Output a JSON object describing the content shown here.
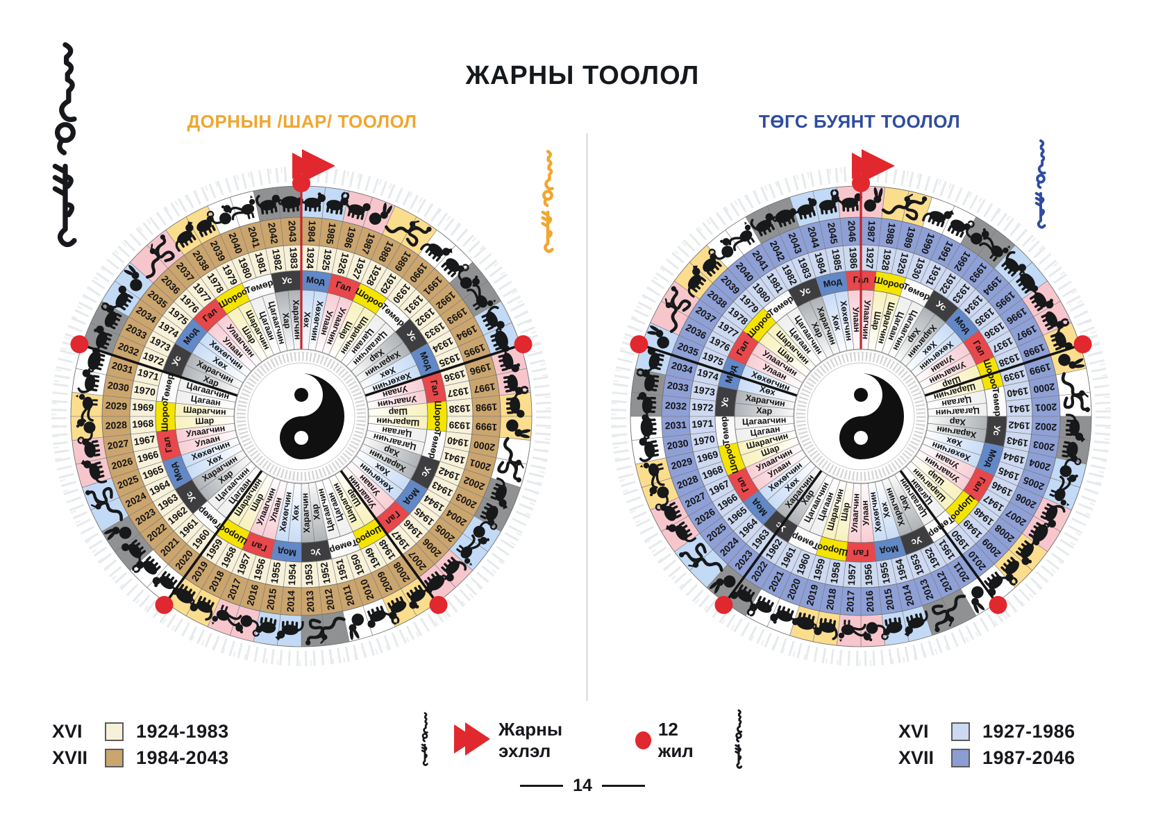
{
  "page": {
    "title": "ЖАРНЫ ТООЛОЛ",
    "page_number": "14"
  },
  "panels": {
    "left": {
      "subtitle": "ДОРНЫН /ШАР/ ТООЛОЛ",
      "accent": "#F0A62F",
      "legend": [
        {
          "roman": "XVI",
          "range": "1924-1983",
          "swatch": "#F8F1DA"
        },
        {
          "roman": "XVII",
          "range": "1984-2043",
          "swatch": "#CBA56E"
        }
      ]
    },
    "right": {
      "subtitle": "ТӨГС БУЯНТ ТООЛОЛ",
      "accent": "#2E4C9F",
      "legend": [
        {
          "roman": "XVI",
          "range": "1927-1986",
          "swatch": "#CDD9F1"
        },
        {
          "roman": "XVII",
          "range": "1987-2046",
          "swatch": "#8B9DD3"
        }
      ]
    }
  },
  "center_legend": {
    "flag_label": "Жарны эхлэл",
    "dot_label": "12 жил",
    "marker_color": "#E0282E"
  },
  "wheels": [
    {
      "id": "left",
      "outer": {
        "cycle": "XVII",
        "start": 1984,
        "end": 2043,
        "color": "#CBA56E"
      },
      "inner": {
        "cycle": "XVI",
        "start": 1924,
        "end": 1983,
        "color": "#F8F1DA"
      },
      "flag_at": 1984,
      "dot_every_years": 12
    },
    {
      "id": "right",
      "outer": {
        "cycle": "XVII",
        "start": 1987,
        "end": 2046,
        "color": "#8FA0D6"
      },
      "inner": {
        "cycle": "XVI",
        "start": 1927,
        "end": 1986,
        "color": "#CDD9F1"
      },
      "flag_at": 1987,
      "dot_every_years": 12
    }
  ],
  "cycle": {
    "elements": [
      {
        "name": "Мод",
        "band": "#6288C8",
        "band_text": "#141414",
        "animal_bg": "#C2DAF5",
        "fade": "#C8DCF6"
      },
      {
        "name": "Гал",
        "band": "#E8474B",
        "band_text": "#141414",
        "animal_bg": "#F7C6CD",
        "fade": "#F8CDD4"
      },
      {
        "name": "Шороо",
        "band": "#F5E400",
        "band_text": "#141414",
        "animal_bg": "#FBDD8E",
        "fade": "#F8F1BC"
      },
      {
        "name": "Төмөр",
        "band": "#FAFAFA",
        "band_text": "#141414",
        "animal_bg": "#FFFFFF",
        "fade": "#EFEFEF"
      },
      {
        "name": "Ус",
        "band": "#3E3E40",
        "band_text": "#FFFFFF",
        "animal_bg": "#909193",
        "fade": "#AEB2B6"
      }
    ],
    "color_names": [
      "Хөх",
      "Хөхөгчин",
      "Улаан",
      "Улаагчин",
      "Шар",
      "Шарагчин",
      "Цагаан",
      "Цагаагчин",
      "Хар",
      "Харагчин"
    ],
    "animals": [
      "rat",
      "ox",
      "tiger",
      "rabbit",
      "dragon",
      "snake",
      "horse",
      "sheep",
      "monkey",
      "rooster",
      "dog",
      "pig"
    ]
  }
}
